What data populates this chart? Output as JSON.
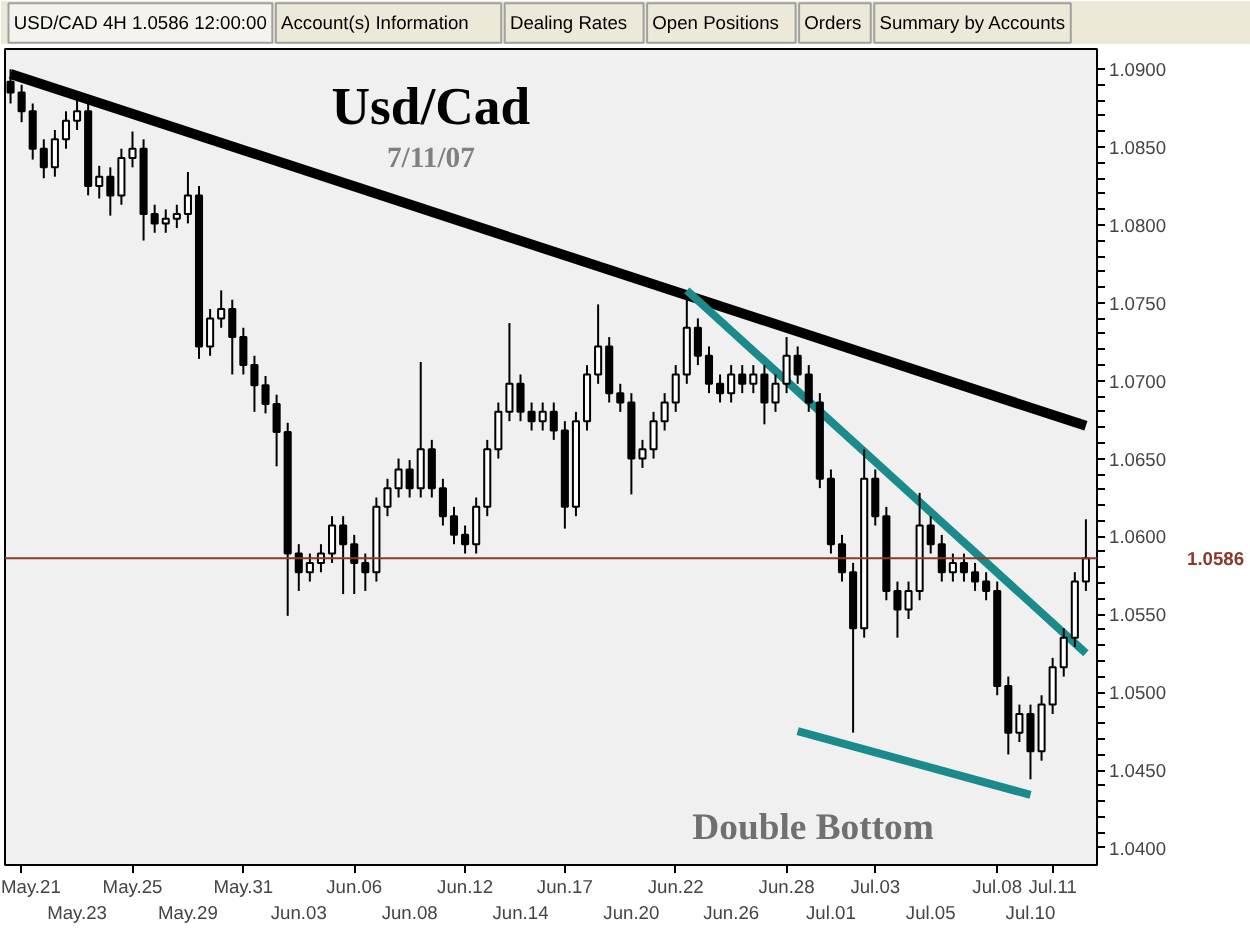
{
  "chart_data": {
    "type": "candlestick",
    "title": "Usd/Cad",
    "subtitle": "7/11/07",
    "annotations": [
      "USD/CAD 4H 1.0586 12:00:00",
      "Account(s) Information",
      "Dealing Rates",
      "Open Positions",
      "Orders",
      "Summary by Accounts",
      "Double Bottom"
    ],
    "categories": [
      null,
      "May.21",
      null,
      null,
      null,
      null,
      "May.23",
      null,
      null,
      null,
      null,
      "May.25",
      null,
      null,
      null,
      null,
      "May.29",
      null,
      null,
      null,
      null,
      "May.31",
      null,
      null,
      null,
      null,
      "Jun.03",
      null,
      null,
      null,
      null,
      "Jun.06",
      null,
      null,
      null,
      null,
      "Jun.08",
      null,
      null,
      null,
      null,
      "Jun.12",
      null,
      null,
      null,
      null,
      "Jun.14",
      null,
      null,
      null,
      "Jun.17",
      null,
      null,
      null,
      null,
      null,
      "Jun.20",
      null,
      null,
      null,
      "Jun.22",
      null,
      null,
      null,
      null,
      "Jun.26",
      null,
      null,
      null,
      null,
      "Jun.28",
      null,
      null,
      null,
      "Jul.01",
      null,
      null,
      null,
      "Jul.03",
      null,
      null,
      null,
      null,
      "Jul.05",
      null,
      null,
      null,
      null,
      null,
      "Jul.08",
      null,
      null,
      "Jul.10",
      null,
      "Jul.11",
      null,
      null,
      null
    ],
    "ohlc": [
      [
        1.0892,
        1.09,
        1.0878,
        1.0885
      ],
      [
        1.0885,
        1.089,
        1.0866,
        1.0873
      ],
      [
        1.0873,
        1.0878,
        1.0842,
        1.0849
      ],
      [
        1.0849,
        1.0855,
        1.083,
        1.0837
      ],
      [
        1.0837,
        1.0861,
        1.0831,
        1.0855
      ],
      [
        1.0855,
        1.0873,
        1.0849,
        1.0867
      ],
      [
        1.0867,
        1.0882,
        1.0861,
        1.0873
      ],
      [
        1.0873,
        1.0879,
        1.0819,
        1.0825
      ],
      [
        1.0825,
        1.0838,
        1.0817,
        1.0831
      ],
      [
        1.0831,
        1.0837,
        1.0806,
        1.0819
      ],
      [
        1.0819,
        1.0849,
        1.0813,
        1.0843
      ],
      [
        1.0843,
        1.086,
        1.0837,
        1.0849
      ],
      [
        1.0849,
        1.0855,
        1.079,
        1.0807
      ],
      [
        1.0807,
        1.0813,
        1.0795,
        1.0801
      ],
      [
        1.0801,
        1.081,
        1.0795,
        1.0804
      ],
      [
        1.0804,
        1.0813,
        1.0798,
        1.0807
      ],
      [
        1.0807,
        1.0834,
        1.0801,
        1.0819
      ],
      [
        1.0819,
        1.0825,
        1.0714,
        1.0722
      ],
      [
        1.0722,
        1.0746,
        1.0716,
        1.074
      ],
      [
        1.074,
        1.0758,
        1.0734,
        1.0746
      ],
      [
        1.0746,
        1.0752,
        1.0704,
        1.0728
      ],
      [
        1.0728,
        1.0734,
        1.0704,
        1.071
      ],
      [
        1.071,
        1.0716,
        1.068,
        1.0697
      ],
      [
        1.0697,
        1.0703,
        1.0679,
        1.0685
      ],
      [
        1.0685,
        1.0691,
        1.0645,
        1.0667
      ],
      [
        1.0667,
        1.0673,
        1.0549,
        1.0589
      ],
      [
        1.0589,
        1.0595,
        1.0565,
        1.0577
      ],
      [
        1.0577,
        1.0589,
        1.0571,
        1.0583
      ],
      [
        1.0583,
        1.0595,
        1.0577,
        1.0589
      ],
      [
        1.0589,
        1.0613,
        1.0583,
        1.0607
      ],
      [
        1.0607,
        1.0613,
        1.0563,
        1.0595
      ],
      [
        1.0595,
        1.0601,
        1.0563,
        1.0583
      ],
      [
        1.0583,
        1.0589,
        1.0565,
        1.0577
      ],
      [
        1.0577,
        1.0625,
        1.0571,
        1.0619
      ],
      [
        1.0619,
        1.0637,
        1.0613,
        1.0631
      ],
      [
        1.0631,
        1.065,
        1.0625,
        1.0643
      ],
      [
        1.0643,
        1.0649,
        1.0625,
        1.0631
      ],
      [
        1.0631,
        1.0712,
        1.0625,
        1.0656
      ],
      [
        1.0656,
        1.0662,
        1.0625,
        1.0631
      ],
      [
        1.0631,
        1.0637,
        1.0607,
        1.0613
      ],
      [
        1.0613,
        1.0619,
        1.0595,
        1.0601
      ],
      [
        1.0601,
        1.0607,
        1.0589,
        1.0595
      ],
      [
        1.0595,
        1.0625,
        1.0589,
        1.0619
      ],
      [
        1.0619,
        1.0662,
        1.0613,
        1.0656
      ],
      [
        1.0656,
        1.0686,
        1.065,
        1.068
      ],
      [
        1.068,
        1.0737,
        1.0674,
        1.0698
      ],
      [
        1.0698,
        1.0704,
        1.0674,
        1.068
      ],
      [
        1.068,
        1.0686,
        1.0668,
        1.0674
      ],
      [
        1.0674,
        1.0686,
        1.0668,
        1.068
      ],
      [
        1.068,
        1.0686,
        1.0662,
        1.0668
      ],
      [
        1.0668,
        1.0674,
        1.0605,
        1.0619
      ],
      [
        1.0619,
        1.068,
        1.0613,
        1.0674
      ],
      [
        1.0674,
        1.071,
        1.0668,
        1.0704
      ],
      [
        1.0704,
        1.0749,
        1.0698,
        1.0722
      ],
      [
        1.0722,
        1.0728,
        1.0686,
        1.0692
      ],
      [
        1.0692,
        1.0698,
        1.068,
        1.0686
      ],
      [
        1.0686,
        1.0692,
        1.0627,
        1.065
      ],
      [
        1.065,
        1.0662,
        1.0644,
        1.0656
      ],
      [
        1.0656,
        1.068,
        1.065,
        1.0674
      ],
      [
        1.0674,
        1.0692,
        1.0668,
        1.0686
      ],
      [
        1.0686,
        1.071,
        1.068,
        1.0704
      ],
      [
        1.0704,
        1.0752,
        1.0698,
        1.0734
      ],
      [
        1.0734,
        1.074,
        1.071,
        1.0716
      ],
      [
        1.0716,
        1.0722,
        1.0692,
        1.0698
      ],
      [
        1.0698,
        1.0704,
        1.0686,
        1.0692
      ],
      [
        1.0692,
        1.071,
        1.0686,
        1.0704
      ],
      [
        1.0704,
        1.071,
        1.0692,
        1.0698
      ],
      [
        1.0698,
        1.071,
        1.0692,
        1.0704
      ],
      [
        1.0704,
        1.071,
        1.0672,
        1.0686
      ],
      [
        1.0686,
        1.0704,
        1.068,
        1.0698
      ],
      [
        1.0698,
        1.0728,
        1.0692,
        1.0716
      ],
      [
        1.0716,
        1.0722,
        1.0698,
        1.0704
      ],
      [
        1.0704,
        1.071,
        1.068,
        1.0686
      ],
      [
        1.0686,
        1.0692,
        1.0631,
        1.0637
      ],
      [
        1.0637,
        1.0643,
        1.0589,
        1.0595
      ],
      [
        1.0595,
        1.0601,
        1.0571,
        1.0577
      ],
      [
        1.0577,
        1.0583,
        1.0474,
        1.0541
      ],
      [
        1.0541,
        1.0656,
        1.0535,
        1.0637
      ],
      [
        1.0637,
        1.0643,
        1.0607,
        1.0613
      ],
      [
        1.0613,
        1.0619,
        1.0559,
        1.0565
      ],
      [
        1.0565,
        1.0571,
        1.0535,
        1.0553
      ],
      [
        1.0553,
        1.0571,
        1.0547,
        1.0565
      ],
      [
        1.0565,
        1.0628,
        1.0559,
        1.0607
      ],
      [
        1.0607,
        1.0613,
        1.0589,
        1.0595
      ],
      [
        1.0595,
        1.0601,
        1.0571,
        1.0577
      ],
      [
        1.0577,
        1.0589,
        1.0571,
        1.0583
      ],
      [
        1.0583,
        1.0589,
        1.0571,
        1.0577
      ],
      [
        1.0577,
        1.0583,
        1.0565,
        1.0571
      ],
      [
        1.0571,
        1.0577,
        1.0559,
        1.0565
      ],
      [
        1.0565,
        1.0571,
        1.0498,
        1.0504
      ],
      [
        1.0504,
        1.051,
        1.046,
        1.0474
      ],
      [
        1.0474,
        1.0492,
        1.0468,
        1.0486
      ],
      [
        1.0486,
        1.0492,
        1.0444,
        1.0462
      ],
      [
        1.0462,
        1.0498,
        1.0456,
        1.0492
      ],
      [
        1.0492,
        1.0522,
        1.0486,
        1.0516
      ],
      [
        1.0516,
        1.0541,
        1.051,
        1.0535
      ],
      [
        1.0535,
        1.0577,
        1.0529,
        1.0571
      ],
      [
        1.0571,
        1.0611,
        1.0565,
        1.0586
      ]
    ],
    "series": [
      {
        "type": "line",
        "color": "#000000",
        "values": [
          1.0897,
          null,
          null,
          null,
          null,
          null,
          null,
          null,
          null,
          null,
          null,
          null,
          null,
          null,
          null,
          null,
          null,
          null,
          null,
          null,
          null,
          null,
          null,
          null,
          null,
          null,
          null,
          null,
          null,
          null,
          null,
          null,
          null,
          null,
          null,
          null,
          null,
          null,
          null,
          null,
          null,
          null,
          null,
          null,
          null,
          null,
          null,
          null,
          null,
          null,
          null,
          null,
          null,
          null,
          null,
          null,
          null,
          null,
          null,
          null,
          null,
          null,
          null,
          null,
          null,
          null,
          null,
          null,
          null,
          null,
          null,
          null,
          null,
          null,
          null,
          null,
          null,
          null,
          null,
          null,
          null,
          null,
          null,
          null,
          null,
          null,
          null,
          null,
          null,
          null,
          null,
          null,
          null,
          null,
          null,
          null,
          null,
          1.0671
        ]
      },
      {
        "type": "line",
        "color": "#1a8a8a",
        "values": [
          null,
          null,
          null,
          null,
          null,
          null,
          null,
          null,
          null,
          null,
          null,
          null,
          null,
          null,
          null,
          null,
          null,
          null,
          null,
          null,
          null,
          null,
          null,
          null,
          null,
          null,
          null,
          null,
          null,
          null,
          null,
          null,
          null,
          null,
          null,
          null,
          null,
          null,
          null,
          null,
          null,
          null,
          null,
          null,
          null,
          null,
          null,
          null,
          null,
          null,
          null,
          null,
          null,
          null,
          null,
          null,
          null,
          null,
          null,
          null,
          null,
          1.0758,
          null,
          null,
          null,
          null,
          null,
          null,
          null,
          null,
          null,
          null,
          null,
          null,
          null,
          null,
          null,
          null,
          null,
          null,
          null,
          null,
          null,
          null,
          null,
          null,
          null,
          null,
          null,
          null,
          null,
          null,
          null,
          null,
          null,
          null,
          null,
          1.0525
        ]
      },
      {
        "type": "line",
        "color": "#1a8a8a",
        "values": [
          null,
          null,
          null,
          null,
          null,
          null,
          null,
          null,
          null,
          null,
          null,
          null,
          null,
          null,
          null,
          null,
          null,
          null,
          null,
          null,
          null,
          null,
          null,
          null,
          null,
          null,
          null,
          null,
          null,
          null,
          null,
          null,
          null,
          null,
          null,
          null,
          null,
          null,
          null,
          null,
          null,
          null,
          null,
          null,
          null,
          null,
          null,
          null,
          null,
          null,
          null,
          null,
          null,
          null,
          null,
          null,
          null,
          null,
          null,
          null,
          null,
          null,
          null,
          null,
          null,
          null,
          null,
          null,
          null,
          null,
          null,
          1.0475,
          null,
          null,
          null,
          null,
          null,
          null,
          null,
          null,
          null,
          null,
          null,
          null,
          null,
          null,
          null,
          null,
          null,
          null,
          null,
          null,
          1.0434,
          null,
          null,
          null,
          null,
          null
        ]
      }
    ],
    "ref_lines": [
      {
        "axis": "y",
        "value": 1.0586,
        "label": "1.0586",
        "color": "#8b3a2a"
      }
    ],
    "ylim": [
      1.0389,
      1.0913
    ],
    "yticks": [
      {
        "value": 1.04,
        "label": "1.0400"
      },
      {
        "value": 1.045,
        "label": "1.0450"
      },
      {
        "value": 1.05,
        "label": "1.0500"
      },
      {
        "value": 1.055,
        "label": "1.0550"
      },
      {
        "value": 1.06,
        "label": "1.0600"
      },
      {
        "value": 1.065,
        "label": "1.0650"
      },
      {
        "value": 1.07,
        "label": "1.0700"
      },
      {
        "value": 1.075,
        "label": "1.0750"
      },
      {
        "value": 1.08,
        "label": "1.0800"
      },
      {
        "value": 1.085,
        "label": "1.0850"
      },
      {
        "value": 1.09,
        "label": "1.0900"
      }
    ],
    "grid": false
  }
}
